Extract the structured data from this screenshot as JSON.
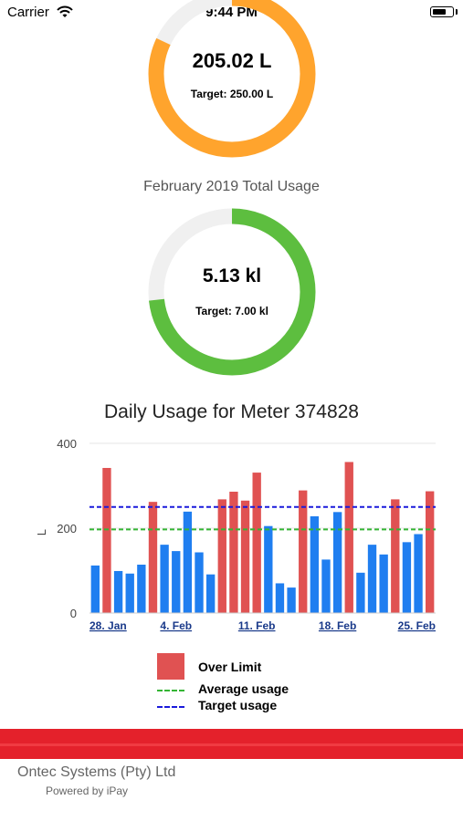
{
  "status_bar": {
    "carrier": "Carrier",
    "time": "9:44 PM"
  },
  "daily_gauge": {
    "value": "205.02 L",
    "target": "Target: 250.00 L",
    "fraction": 0.82,
    "color": "#ffa42d"
  },
  "monthly": {
    "title": "February 2019 Total Usage",
    "value": "5.13 kl",
    "target": "Target: 7.00 kl",
    "fraction": 0.733,
    "color": "#5dbe3f"
  },
  "chart_title": "Daily Usage for Meter 374828",
  "chart_data": {
    "type": "bar",
    "title": "Daily Usage for Meter 374828",
    "ylabel": "L",
    "ylim": [
      0,
      400
    ],
    "yticks": [
      "0",
      "200",
      "400"
    ],
    "x_tick_labels": [
      "28. Jan",
      "4. Feb",
      "11. Feb",
      "18. Feb",
      "25. Feb"
    ],
    "values": [
      112,
      342,
      99,
      93,
      114,
      262,
      161,
      146,
      239,
      143,
      91,
      268,
      286,
      265,
      331,
      205,
      70,
      60,
      289,
      228,
      126,
      238,
      356,
      95,
      161,
      138,
      268,
      167,
      186,
      287
    ],
    "over_limit": [
      false,
      true,
      false,
      false,
      false,
      true,
      false,
      false,
      false,
      false,
      false,
      true,
      true,
      true,
      true,
      false,
      false,
      false,
      true,
      false,
      false,
      false,
      true,
      false,
      false,
      false,
      true,
      false,
      false,
      true
    ],
    "average_usage": 197,
    "target_usage": 250,
    "colors": {
      "normal": "#1f7ef0",
      "over_limit": "#e05252",
      "average": "#34b534",
      "target": "#1a1adb"
    }
  },
  "legend": {
    "over_limit": "Over Limit",
    "average": "Average usage",
    "target": "Target usage"
  },
  "footer": {
    "company": "Ontec Systems (Pty) Ltd",
    "powered_by": "Powered by iPay"
  }
}
